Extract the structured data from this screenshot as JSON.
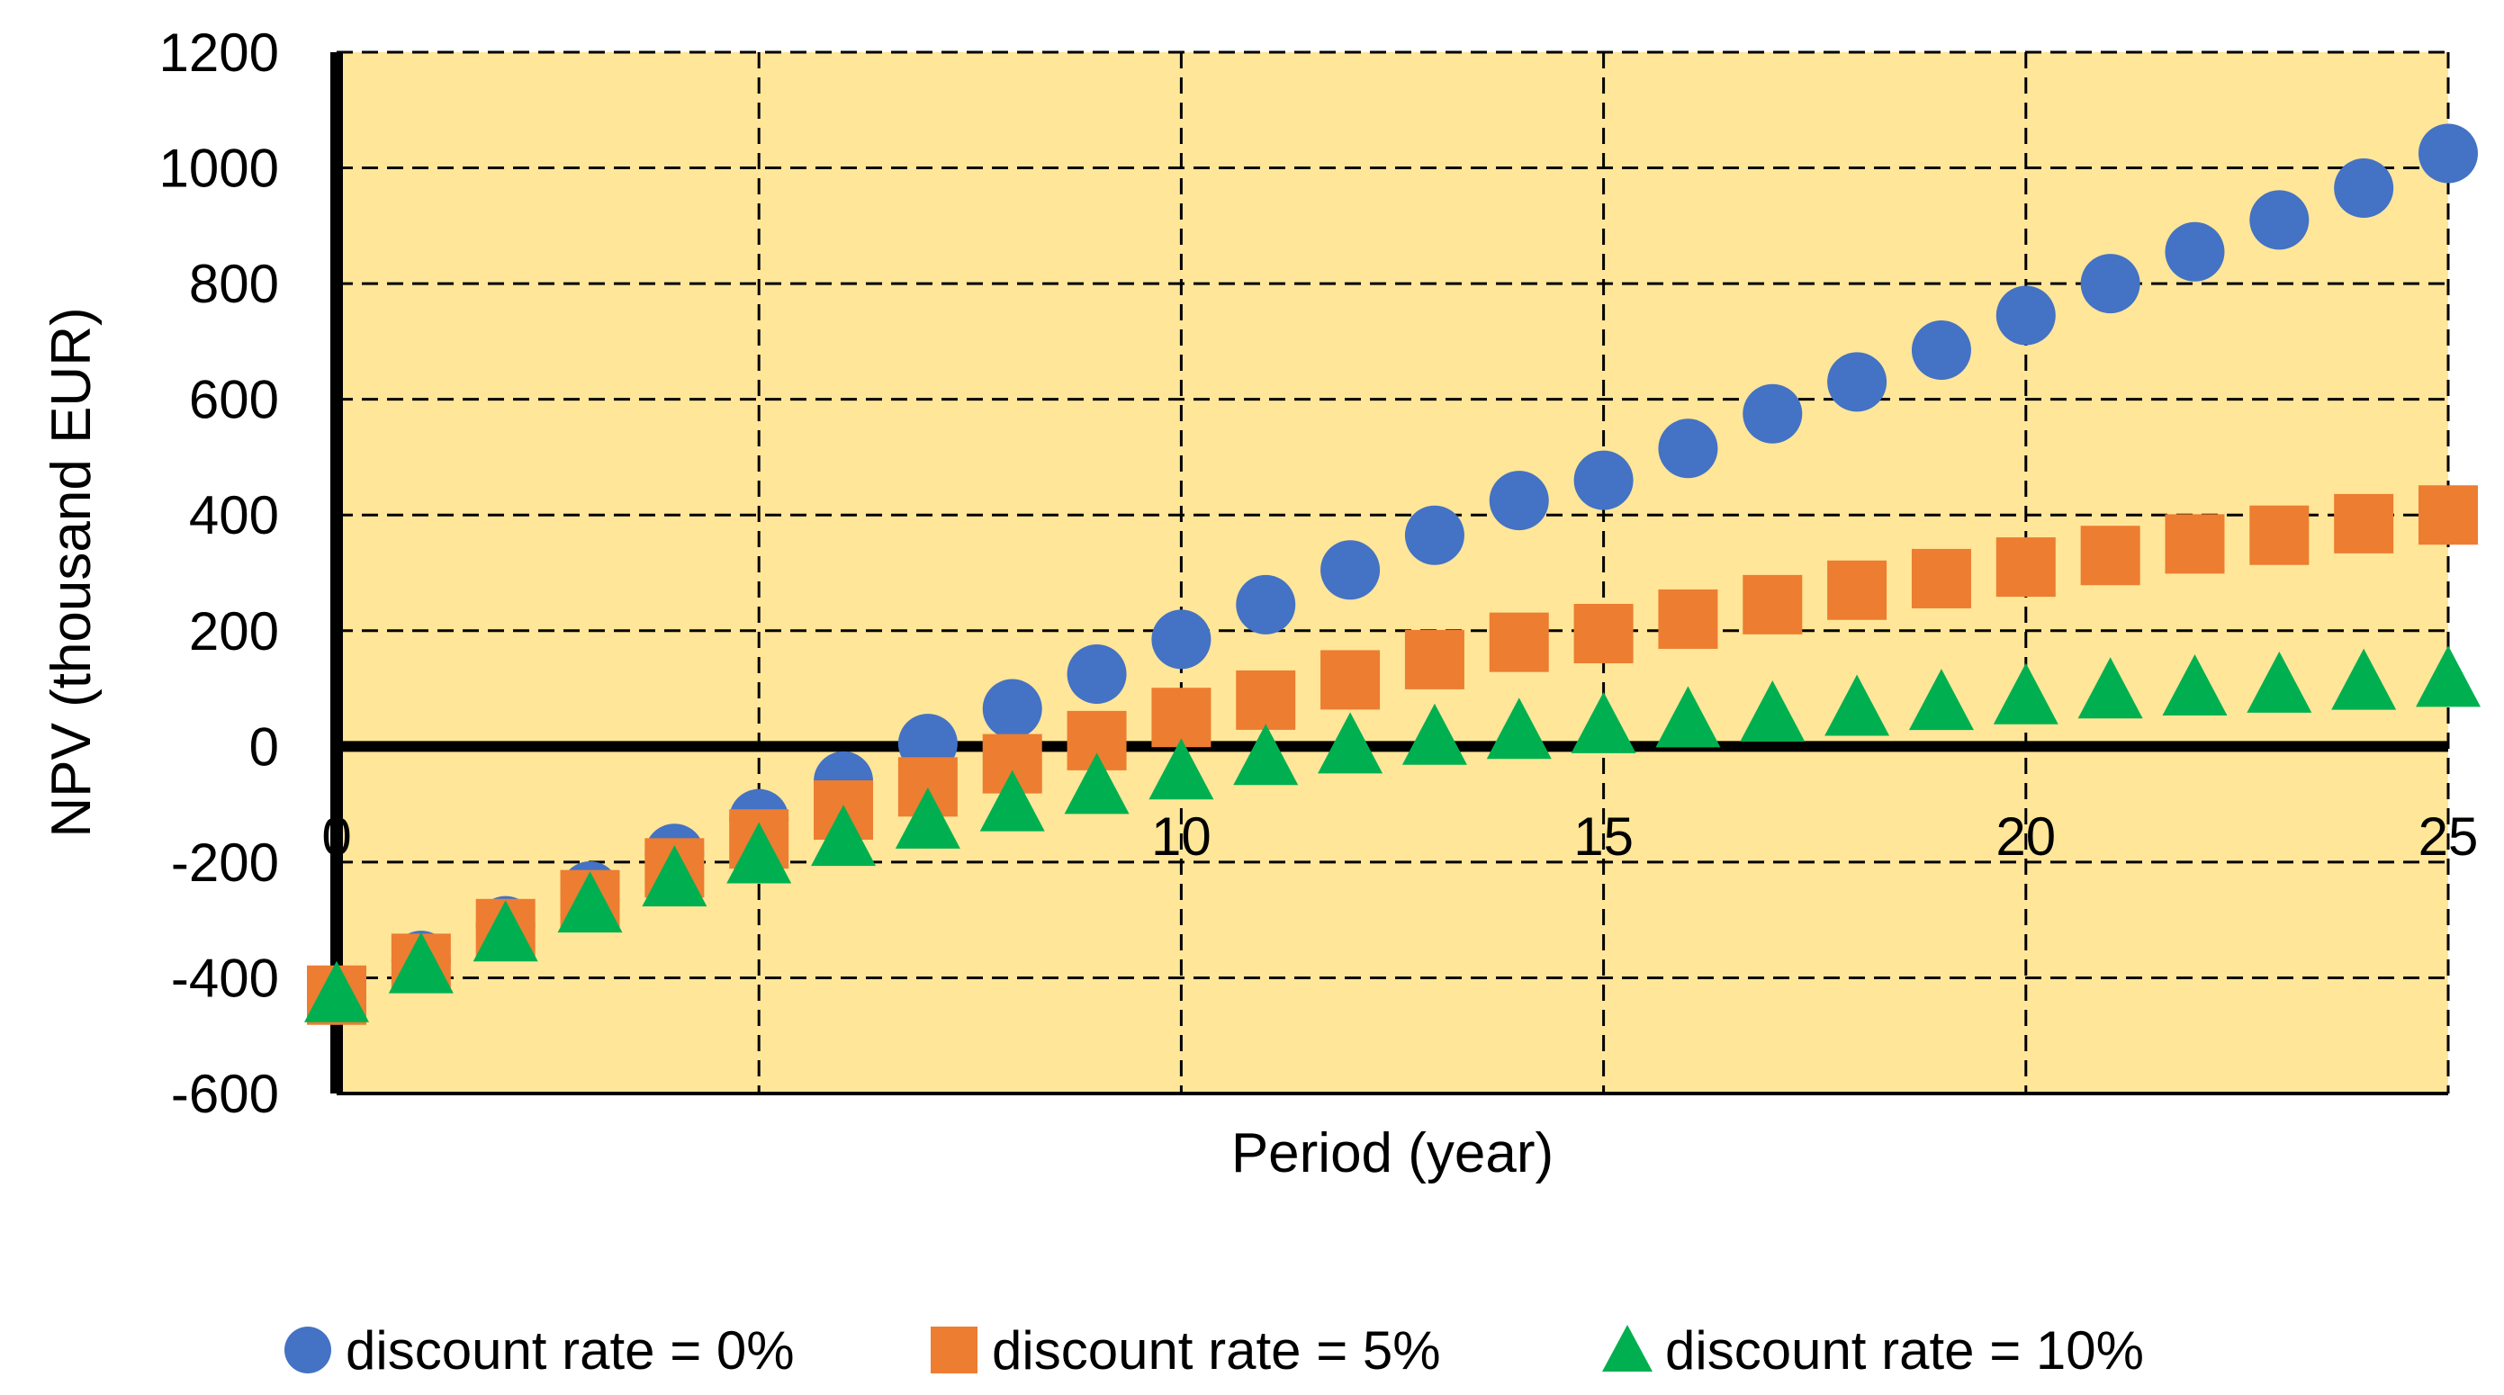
{
  "colors": {
    "plot_background": "#FFE699",
    "series_0": "#4472C4",
    "series_5": "#ED7D31",
    "series_10": "#00B050",
    "axis": "#000000",
    "grid": "#000000"
  },
  "chart_data": {
    "type": "scatter",
    "title": "",
    "xlabel": "Period (year)",
    "ylabel": "NPV (thousand EUR)",
    "xlim": [
      0,
      25
    ],
    "ylim": [
      -600,
      1200
    ],
    "xticks": [
      0,
      5,
      10,
      15,
      20,
      25
    ],
    "xtick_labels": [
      "0",
      "5",
      "10",
      "15",
      "20",
      "25"
    ],
    "yticks": [
      -600,
      -400,
      -200,
      0,
      200,
      400,
      600,
      800,
      1000,
      1200
    ],
    "ytick_labels": [
      "-600",
      "-400",
      "-200",
      "0",
      "200",
      "400",
      "600",
      "800",
      "1000",
      "1200"
    ],
    "grid": true,
    "legend_position": "bottom",
    "x": [
      0,
      1,
      2,
      3,
      4,
      5,
      6,
      7,
      8,
      9,
      10,
      11,
      12,
      13,
      14,
      15,
      16,
      17,
      18,
      19,
      20,
      21,
      22,
      23,
      24,
      25
    ],
    "series": [
      {
        "name": "discount rate = 0%",
        "marker": "circle",
        "color_key": "series_0",
        "values": [
          -430,
          -370,
          -310,
          -250,
          -185,
          -125,
          -60,
          5,
          65,
          125,
          185,
          245,
          305,
          365,
          425,
          460,
          515,
          575,
          630,
          685,
          745,
          800,
          855,
          910,
          965,
          1025
        ]
      },
      {
        "name": "discount rate = 5%",
        "marker": "square",
        "color_key": "series_5",
        "values": [
          -430,
          -375,
          -315,
          -265,
          -210,
          -160,
          -110,
          -70,
          -30,
          10,
          50,
          80,
          115,
          150,
          180,
          195,
          220,
          245,
          270,
          290,
          310,
          330,
          350,
          365,
          385,
          400
        ]
      },
      {
        "name": "discount rate = 10%",
        "marker": "triangle",
        "color_key": "series_10",
        "values": [
          -430,
          -380,
          -325,
          -275,
          -230,
          -190,
          -160,
          -130,
          -100,
          -70,
          -45,
          -20,
          0,
          15,
          25,
          35,
          45,
          55,
          65,
          75,
          85,
          95,
          100,
          105,
          110,
          115
        ]
      }
    ]
  }
}
